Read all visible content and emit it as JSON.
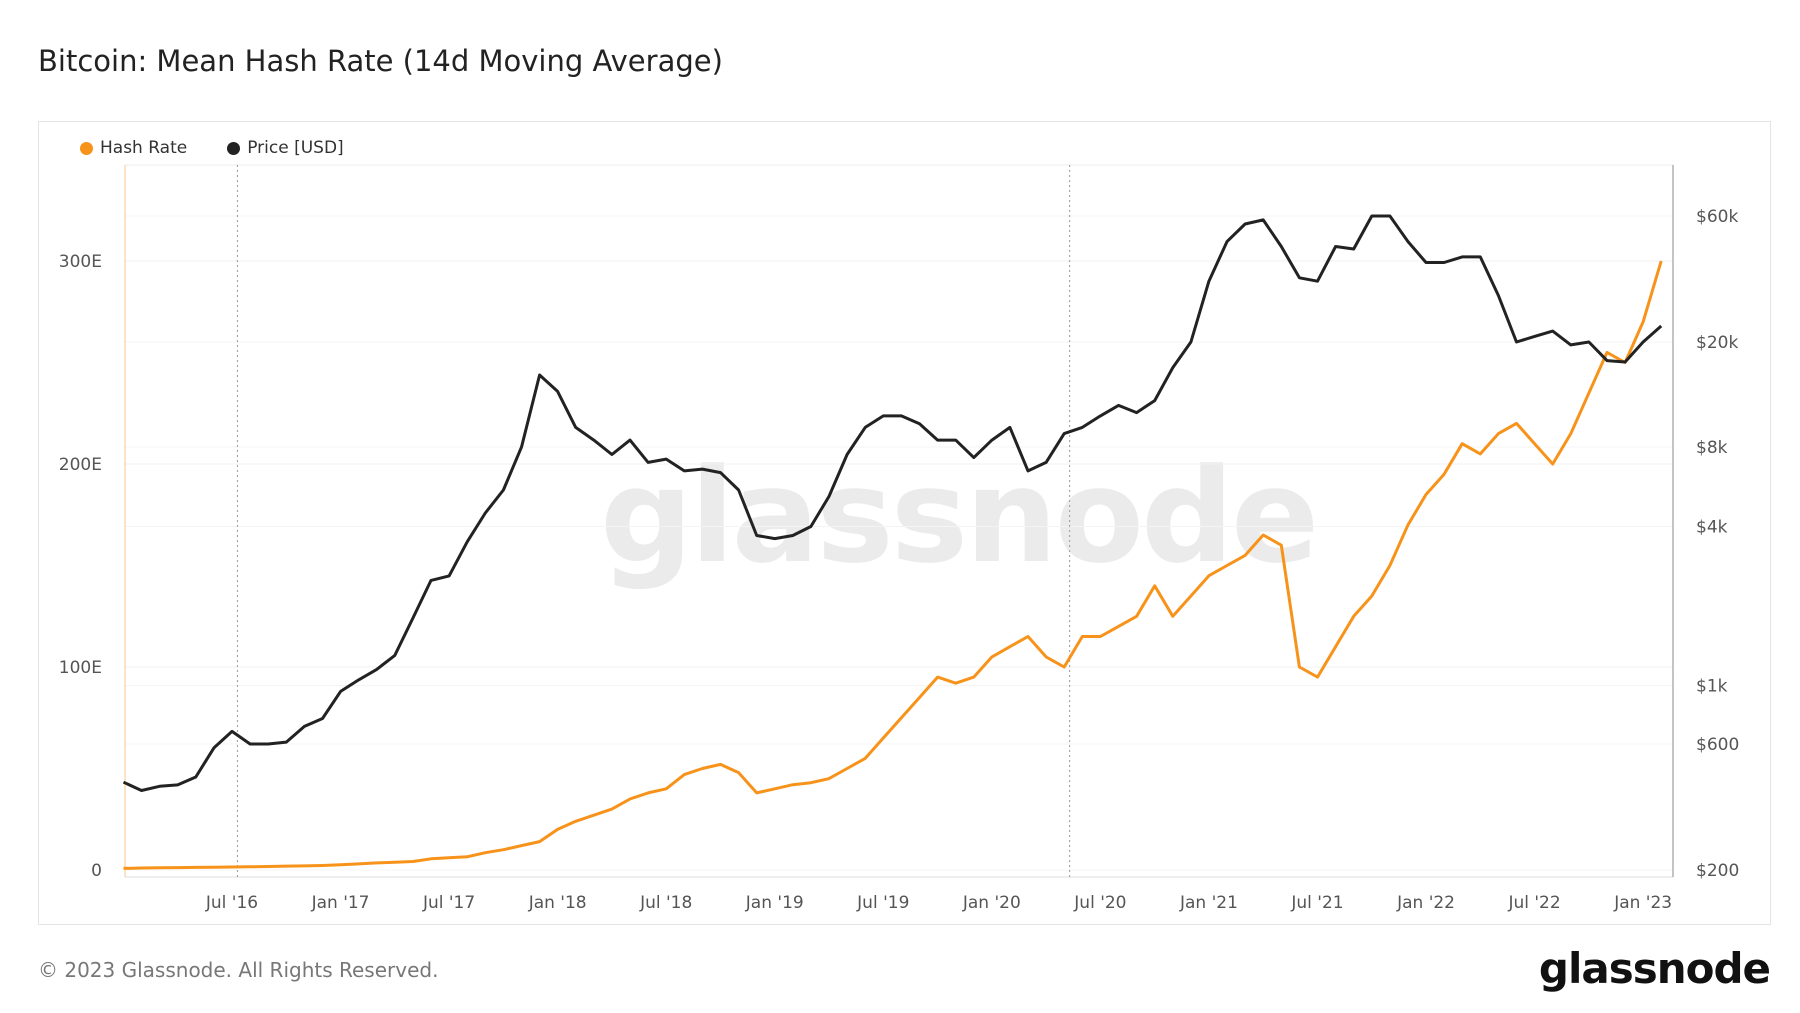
{
  "chart_data": {
    "type": "line",
    "title": "Bitcoin: Mean Hash Rate (14d Moving Average)",
    "x_start": "2016-01",
    "x_step": "month",
    "x_tick_labels": [
      "Jul '16",
      "Jan '17",
      "Jul '17",
      "Jan '18",
      "Jul '18",
      "Jan '19",
      "Jul '19",
      "Jan '20",
      "Jul '20",
      "Jan '21",
      "Jul '21",
      "Jan '22",
      "Jul '22",
      "Jan '23"
    ],
    "y_left": {
      "scale": "linear",
      "ticks": [
        0,
        100,
        200,
        300
      ],
      "tick_labels": [
        "0",
        "100E",
        "200E",
        "300E"
      ],
      "range": [
        0,
        347
      ]
    },
    "y_right": {
      "scale": "log",
      "ticks": [
        200,
        600,
        1000,
        4000,
        8000,
        20000,
        60000
      ],
      "tick_labels": [
        "$200",
        "$600",
        "$1k",
        "$4k",
        "$8k",
        "$20k",
        "$60k"
      ],
      "range": [
        188,
        93500
      ]
    },
    "vertical_markers": [
      "2016-07",
      "2020-05"
    ],
    "grid": true,
    "legend_position": "top-left",
    "series": [
      {
        "name": "Hash Rate",
        "axis": "left",
        "color": "#f7931a",
        "values": [
          0.8,
          1.0,
          1.1,
          1.2,
          1.3,
          1.4,
          1.5,
          1.6,
          1.7,
          1.9,
          2.0,
          2.2,
          2.6,
          3.0,
          3.5,
          3.8,
          4.2,
          5.5,
          6.0,
          6.5,
          8.5,
          10,
          12,
          14,
          20,
          24,
          27,
          30,
          35,
          38,
          40,
          47,
          50,
          52,
          48,
          38,
          40,
          42,
          43,
          45,
          50,
          55,
          65,
          75,
          85,
          95,
          92,
          95,
          105,
          110,
          115,
          105,
          100,
          115,
          115,
          120,
          125,
          140,
          125,
          135,
          145,
          150,
          155,
          165,
          160,
          100,
          95,
          110,
          125,
          135,
          150,
          170,
          185,
          195,
          210,
          205,
          215,
          220,
          210,
          200,
          215,
          235,
          255,
          250,
          270,
          300
        ]
      },
      {
        "name": "Price [USD]",
        "axis": "right",
        "color": "#222222",
        "values": [
          430,
          400,
          415,
          420,
          450,
          580,
          670,
          600,
          600,
          610,
          700,
          750,
          950,
          1050,
          1150,
          1300,
          1800,
          2500,
          2600,
          3500,
          4500,
          5500,
          8000,
          15000,
          13000,
          9500,
          8500,
          7500,
          8500,
          7000,
          7200,
          6500,
          6600,
          6400,
          5500,
          3700,
          3600,
          3700,
          4000,
          5200,
          7500,
          9500,
          10500,
          10500,
          9800,
          8500,
          8500,
          7300,
          8500,
          9500,
          6500,
          7000,
          9000,
          9500,
          10500,
          11500,
          10800,
          12000,
          16000,
          20000,
          34000,
          48000,
          56000,
          58000,
          46000,
          35000,
          34000,
          46000,
          45000,
          60000,
          60000,
          48000,
          40000,
          40000,
          42000,
          42000,
          30000,
          20000,
          21000,
          22000,
          19500,
          20000,
          17000,
          16800,
          20000,
          23000
        ]
      }
    ]
  },
  "footer": {
    "copyright": "© 2023 Glassnode. All Rights Reserved.",
    "logo": "glassnode",
    "watermark": "glassnode"
  }
}
